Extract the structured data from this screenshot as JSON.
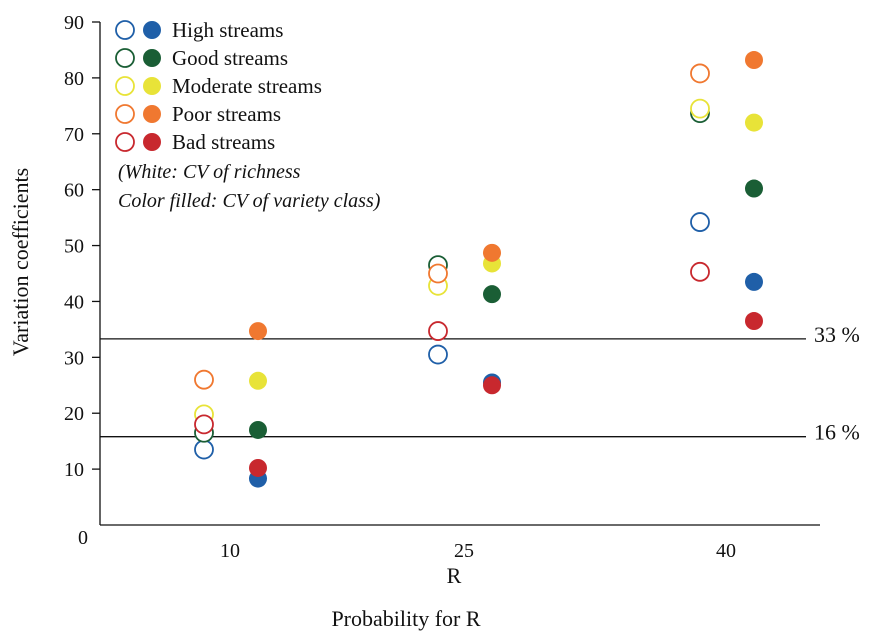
{
  "chart_data": {
    "type": "scatter",
    "title": "",
    "xlabel": "Probability for R",
    "x_sublabel": "R",
    "ylabel": "Variation coefficients",
    "ylim": [
      0,
      90
    ],
    "yticks": [
      "0",
      "10",
      "20",
      "30",
      "40",
      "50",
      "60",
      "70",
      "80",
      "90"
    ],
    "categories": [
      "10",
      "25",
      "40"
    ],
    "grid": false,
    "legend_position": "top-left",
    "legend_note": [
      "(White: CV of richness",
      "Color filled:  CV of variety class)"
    ],
    "reference_lines": [
      {
        "value": 33.3,
        "label": "33 %"
      },
      {
        "value": 15.8,
        "label": "16 %"
      }
    ],
    "series": [
      {
        "name": "High streams",
        "color": "#1f5fa8",
        "richness": [
          13.5,
          30.5,
          54.2
        ],
        "variety_class": [
          8.3,
          25.5,
          43.5
        ]
      },
      {
        "name": "Good streams",
        "color": "#1a5e35",
        "richness": [
          16.5,
          46.5,
          73.7
        ],
        "variety_class": [
          17.0,
          41.3,
          60.2
        ]
      },
      {
        "name": "Moderate streams",
        "color": "#e8e338",
        "richness": [
          19.8,
          42.8,
          74.5
        ],
        "variety_class": [
          25.8,
          46.8,
          72.0
        ]
      },
      {
        "name": "Poor streams",
        "color": "#f07830",
        "richness": [
          26.0,
          45.0,
          80.8
        ],
        "variety_class": [
          34.7,
          48.7,
          83.2
        ]
      },
      {
        "name": "Bad streams",
        "color": "#c8282e",
        "richness": [
          18.0,
          34.7,
          45.3
        ],
        "variety_class": [
          10.2,
          25.0,
          36.5
        ]
      }
    ]
  }
}
